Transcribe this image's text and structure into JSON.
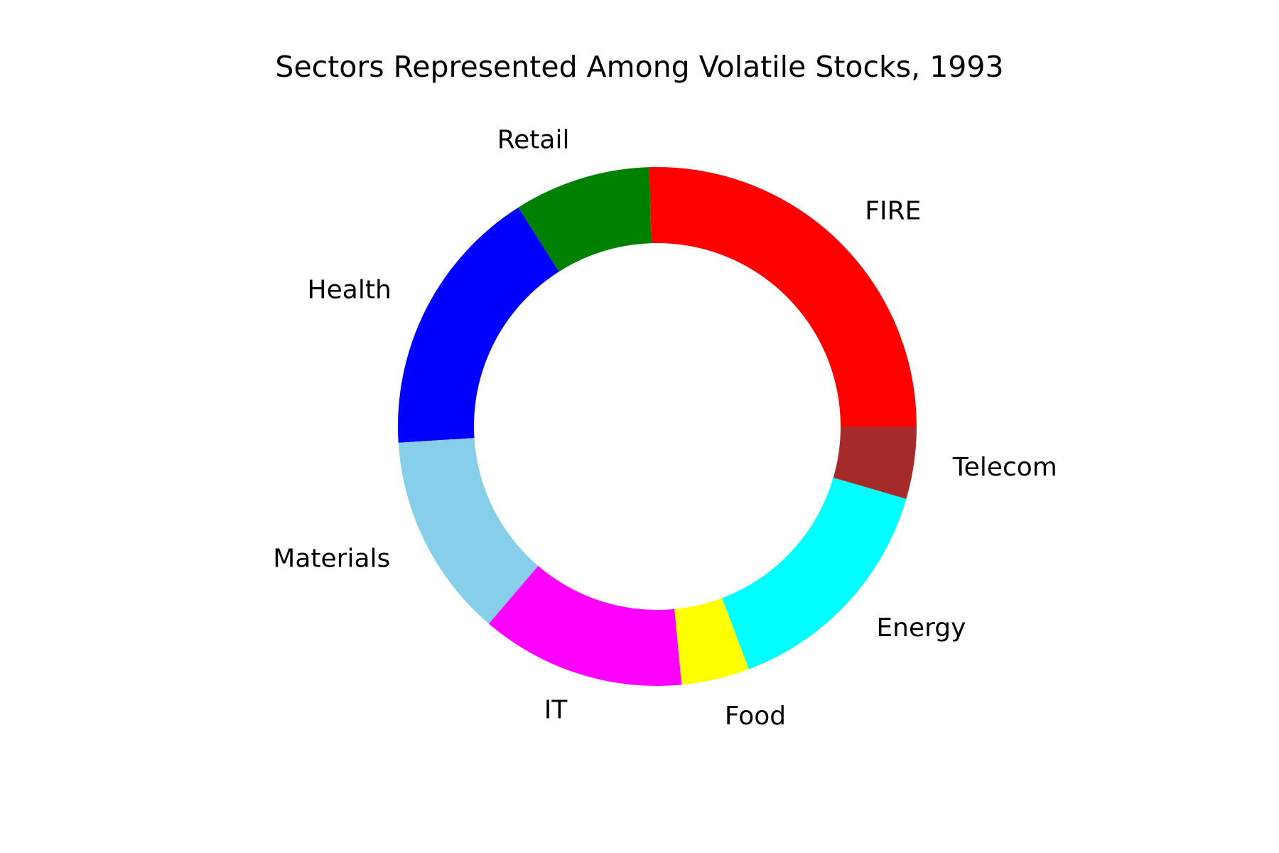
{
  "chart_data": {
    "type": "pie",
    "style": "donut",
    "title": "Sectors Represented Among Volatile Stocks, 1993",
    "start_angle_deg": 0,
    "direction": "counterclockwise",
    "slices": [
      {
        "label": "FIRE",
        "value": 25.5,
        "color": "#ff0000"
      },
      {
        "label": "Retail",
        "value": 8.5,
        "color": "#008000"
      },
      {
        "label": "Health",
        "value": 17.0,
        "color": "#0000ff"
      },
      {
        "label": "Materials",
        "value": 12.75,
        "color": "#87ceeb"
      },
      {
        "label": "IT",
        "value": 12.75,
        "color": "#ff00ff"
      },
      {
        "label": "Food",
        "value": 4.25,
        "color": "#ffff00"
      },
      {
        "label": "Energy",
        "value": 14.75,
        "color": "#00ffff"
      },
      {
        "label": "Telecom",
        "value": 4.5,
        "color": "#a52a2a"
      }
    ]
  }
}
